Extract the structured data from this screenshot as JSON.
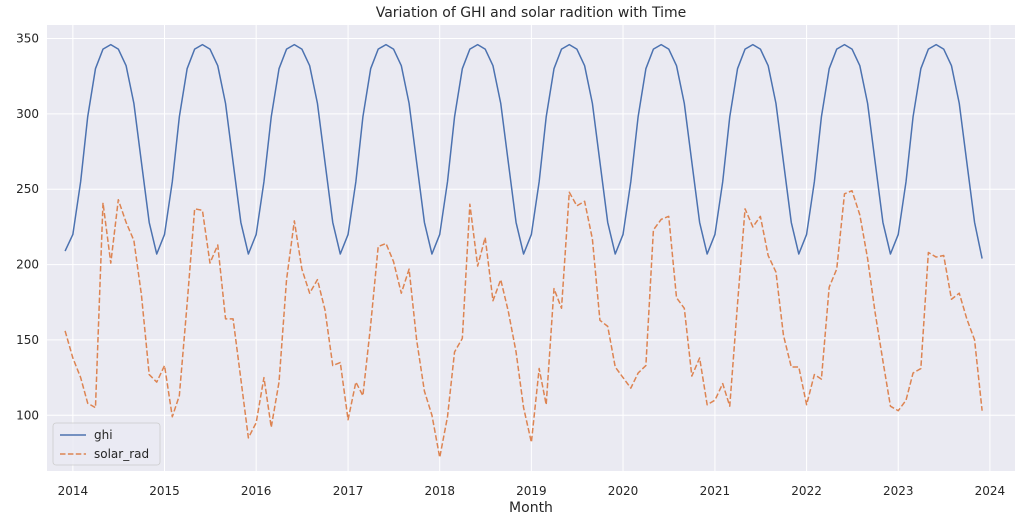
{
  "chart_data": {
    "type": "line",
    "title": "Variation of GHI and solar radition with Time",
    "xlabel": "Month",
    "ylabel": "",
    "x_start": "2013-12",
    "x_end": "2023-12",
    "x_tick_labels": [
      "2014",
      "2015",
      "2016",
      "2017",
      "2018",
      "2019",
      "2020",
      "2021",
      "2022",
      "2023",
      "2024"
    ],
    "y_ticks": [
      100,
      150,
      200,
      250,
      300,
      350
    ],
    "xlim": [
      "2013-09-20",
      "2024-04-10"
    ],
    "ylim": [
      63,
      359
    ],
    "grid": true,
    "legend_position": "lower-left",
    "series": [
      {
        "name": "ghi",
        "color": "#4c72b0",
        "dash": "solid",
        "values": [
          209,
          220,
          255,
          298,
          330,
          343,
          346,
          343,
          332,
          307,
          268,
          228,
          207,
          220,
          255,
          298,
          330,
          343,
          346,
          343,
          332,
          307,
          268,
          228,
          207,
          220,
          255,
          298,
          330,
          343,
          346,
          343,
          332,
          307,
          268,
          228,
          207,
          220,
          255,
          298,
          330,
          343,
          346,
          343,
          332,
          307,
          268,
          228,
          207,
          220,
          255,
          298,
          330,
          343,
          346,
          343,
          332,
          307,
          268,
          228,
          207,
          220,
          255,
          298,
          330,
          343,
          346,
          343,
          332,
          307,
          268,
          228,
          207,
          220,
          255,
          298,
          330,
          343,
          346,
          343,
          332,
          307,
          268,
          228,
          207,
          220,
          255,
          298,
          330,
          343,
          346,
          343,
          332,
          307,
          268,
          228,
          207,
          220,
          255,
          298,
          330,
          343,
          346,
          343,
          332,
          307,
          268,
          228,
          207,
          220,
          255,
          298,
          330,
          343,
          346,
          343,
          332,
          307,
          268,
          228,
          204
        ]
      },
      {
        "name": "solar_rad",
        "color": "#dd8452",
        "dash": "dashed",
        "values": [
          156,
          138,
          125,
          108,
          105,
          241,
          201,
          243,
          228,
          216,
          180,
          127,
          122,
          133,
          99,
          113,
          174,
          237,
          236,
          201,
          213,
          164,
          164,
          124,
          85,
          95,
          125,
          92,
          122,
          190,
          229,
          197,
          181,
          190,
          170,
          133,
          135,
          97,
          122,
          113,
          160,
          212,
          214,
          202,
          181,
          197,
          150,
          116,
          100,
          72,
          99,
          142,
          151,
          240,
          199,
          218,
          176,
          190,
          169,
          142,
          105,
          82,
          131,
          107,
          184,
          171,
          248,
          239,
          242,
          217,
          163,
          159,
          132,
          125,
          118,
          128,
          133,
          223,
          230,
          232,
          178,
          171,
          126,
          138,
          107,
          110,
          121,
          106,
          174,
          237,
          225,
          232,
          206,
          195,
          153,
          132,
          132,
          107,
          127,
          124,
          185,
          197,
          247,
          249,
          233,
          204,
          168,
          136,
          106,
          103,
          110,
          128,
          131,
          208,
          205,
          206,
          177,
          181,
          164,
          150,
          103
        ]
      }
    ]
  }
}
